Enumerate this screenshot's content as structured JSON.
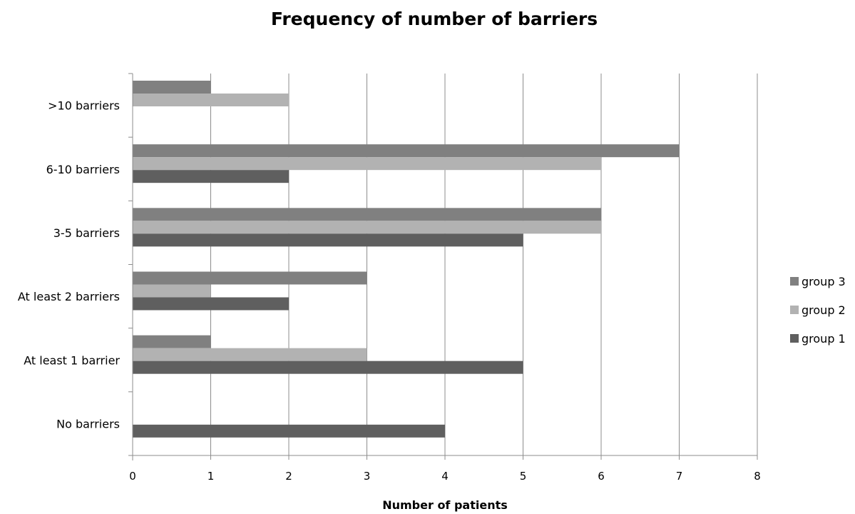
{
  "chart_data": {
    "type": "bar",
    "orientation": "horizontal",
    "title": "Frequency of number of barriers",
    "xlabel": "Number of patients",
    "ylabel": "",
    "xlim": [
      0,
      8
    ],
    "xticks": [
      "0",
      "1",
      "2",
      "3",
      "4",
      "5",
      "6",
      "7",
      "8"
    ],
    "grid": true,
    "legend_position": "right",
    "categories": [
      "No barriers",
      "At least 1 barrier",
      "At least 2 barriers",
      "3-5 barriers",
      "6-10 barriers",
      ">10 barriers"
    ],
    "series": [
      {
        "name": "group 1",
        "color": "#5f5f5f",
        "values": [
          4,
          5,
          2,
          5,
          2,
          0
        ]
      },
      {
        "name": "group 2",
        "color": "#b2b2b2",
        "values": [
          0,
          3,
          1,
          6,
          6,
          2
        ]
      },
      {
        "name": "group 3",
        "color": "#808080",
        "values": [
          0,
          1,
          3,
          6,
          7,
          1
        ]
      }
    ]
  }
}
